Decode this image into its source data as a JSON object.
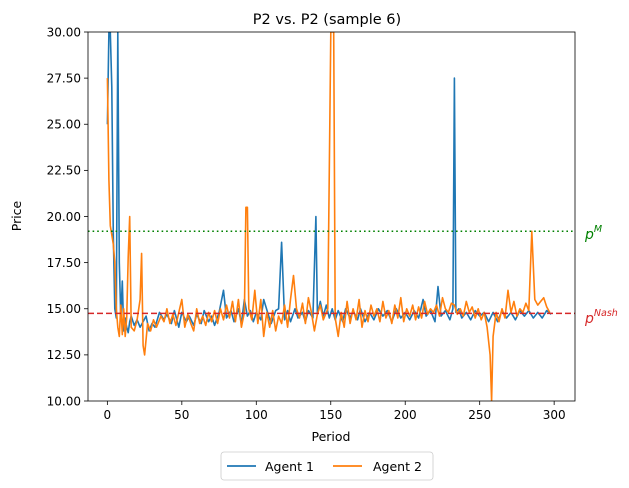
{
  "chart_data": {
    "type": "line",
    "title": "P2 vs. P2 (sample 6)",
    "xlabel": "Period",
    "ylabel": "Price",
    "xlim": [
      -13,
      314
    ],
    "ylim": [
      10.0,
      30.0
    ],
    "xticks": [
      0,
      50,
      100,
      150,
      200,
      250,
      300
    ],
    "yticks": [
      10.0,
      12.5,
      15.0,
      17.5,
      20.0,
      22.5,
      25.0,
      27.5,
      30.0
    ],
    "ytick_labels": [
      "10.00",
      "12.50",
      "15.00",
      "17.50",
      "20.00",
      "22.50",
      "25.00",
      "27.50",
      "30.00"
    ],
    "grid": false,
    "legend_position": "below-center",
    "reference_lines": [
      {
        "name": "p^M",
        "label_main": "p",
        "label_sup": "M",
        "value": 19.2,
        "style": "dotted",
        "color": "#008000"
      },
      {
        "name": "p^Nash",
        "label_main": "p",
        "label_sup": "Nash",
        "value": 14.75,
        "style": "dashed",
        "color": "#d62728"
      }
    ],
    "series": [
      {
        "name": "Agent 1",
        "color": "#1f77b4",
        "points": [
          [
            0,
            25.0
          ],
          [
            1,
            30.0
          ],
          [
            2,
            30.0
          ],
          [
            3,
            27.0
          ],
          [
            4,
            19.0
          ],
          [
            5,
            15.0
          ],
          [
            6,
            14.5
          ],
          [
            7,
            30.0
          ],
          [
            8,
            17.5
          ],
          [
            9,
            14.5
          ],
          [
            10,
            16.5
          ],
          [
            11,
            13.8
          ],
          [
            12,
            14.5
          ],
          [
            13,
            14.0
          ],
          [
            14,
            13.7
          ],
          [
            15,
            14.3
          ],
          [
            16,
            14.6
          ],
          [
            18,
            14.1
          ],
          [
            20,
            14.4
          ],
          [
            22,
            14.0
          ],
          [
            24,
            14.3
          ],
          [
            26,
            14.6
          ],
          [
            28,
            13.8
          ],
          [
            30,
            14.2
          ],
          [
            32,
            14.0
          ],
          [
            35,
            14.8
          ],
          [
            38,
            14.4
          ],
          [
            40,
            14.7
          ],
          [
            43,
            14.2
          ],
          [
            45,
            14.9
          ],
          [
            48,
            14.0
          ],
          [
            50,
            14.8
          ],
          [
            53,
            14.3
          ],
          [
            55,
            14.6
          ],
          [
            58,
            14.1
          ],
          [
            60,
            14.7
          ],
          [
            63,
            14.2
          ],
          [
            65,
            14.9
          ],
          [
            68,
            14.3
          ],
          [
            70,
            14.6
          ],
          [
            72,
            14.1
          ],
          [
            75,
            14.8
          ],
          [
            78,
            16.0
          ],
          [
            80,
            14.5
          ],
          [
            83,
            14.9
          ],
          [
            85,
            14.3
          ],
          [
            88,
            15.0
          ],
          [
            90,
            14.2
          ],
          [
            92,
            15.5
          ],
          [
            94,
            14.6
          ],
          [
            96,
            14.9
          ],
          [
            98,
            14.3
          ],
          [
            100,
            14.8
          ],
          [
            103,
            14.4
          ],
          [
            105,
            15.5
          ],
          [
            108,
            14.7
          ],
          [
            110,
            14.2
          ],
          [
            113,
            14.9
          ],
          [
            115,
            15.0
          ],
          [
            117,
            18.6
          ],
          [
            119,
            14.4
          ],
          [
            121,
            14.9
          ],
          [
            123,
            14.3
          ],
          [
            126,
            15.0
          ],
          [
            128,
            14.5
          ],
          [
            131,
            14.8
          ],
          [
            133,
            14.3
          ],
          [
            135,
            14.9
          ],
          [
            138,
            14.5
          ],
          [
            140,
            20.0
          ],
          [
            141,
            14.7
          ],
          [
            143,
            15.4
          ],
          [
            145,
            14.6
          ],
          [
            147,
            15.2
          ],
          [
            149,
            14.5
          ],
          [
            151,
            15.0
          ],
          [
            153,
            14.4
          ],
          [
            155,
            14.9
          ],
          [
            158,
            14.3
          ],
          [
            160,
            15.0
          ],
          [
            163,
            14.5
          ],
          [
            165,
            14.9
          ],
          [
            168,
            14.4
          ],
          [
            170,
            15.0
          ],
          [
            173,
            14.3
          ],
          [
            176,
            14.8
          ],
          [
            179,
            14.4
          ],
          [
            182,
            15.0
          ],
          [
            185,
            14.6
          ],
          [
            188,
            14.9
          ],
          [
            191,
            14.3
          ],
          [
            194,
            15.0
          ],
          [
            197,
            14.5
          ],
          [
            200,
            14.8
          ],
          [
            203,
            14.4
          ],
          [
            206,
            14.9
          ],
          [
            209,
            14.5
          ],
          [
            212,
            15.5
          ],
          [
            214,
            14.6
          ],
          [
            217,
            14.9
          ],
          [
            220,
            14.3
          ],
          [
            222,
            16.2
          ],
          [
            224,
            14.6
          ],
          [
            227,
            14.9
          ],
          [
            230,
            14.4
          ],
          [
            232,
            15.0
          ],
          [
            233,
            27.5
          ],
          [
            234,
            14.8
          ],
          [
            236,
            15.0
          ],
          [
            238,
            14.5
          ],
          [
            241,
            14.8
          ],
          [
            244,
            14.4
          ],
          [
            247,
            14.9
          ],
          [
            250,
            14.6
          ],
          [
            253,
            14.8
          ],
          [
            256,
            14.3
          ],
          [
            259,
            14.8
          ],
          [
            262,
            14.3
          ],
          [
            265,
            14.9
          ],
          [
            268,
            14.5
          ],
          [
            271,
            14.8
          ],
          [
            274,
            14.4
          ],
          [
            277,
            14.9
          ],
          [
            280,
            14.6
          ],
          [
            283,
            14.9
          ],
          [
            286,
            14.5
          ],
          [
            289,
            14.8
          ],
          [
            292,
            14.5
          ],
          [
            295,
            14.9
          ],
          [
            298,
            14.7
          ]
        ]
      },
      {
        "name": "Agent 2",
        "color": "#ff7f0e",
        "points": [
          [
            0,
            27.5
          ],
          [
            1,
            22.0
          ],
          [
            2,
            19.5
          ],
          [
            3,
            19.0
          ],
          [
            4,
            18.5
          ],
          [
            5,
            17.5
          ],
          [
            6,
            15.0
          ],
          [
            7,
            14.0
          ],
          [
            8,
            13.5
          ],
          [
            9,
            15.2
          ],
          [
            10,
            13.6
          ],
          [
            11,
            15.0
          ],
          [
            12,
            13.5
          ],
          [
            13,
            14.5
          ],
          [
            14,
            17.8
          ],
          [
            15,
            20.0
          ],
          [
            16,
            14.0
          ],
          [
            18,
            13.8
          ],
          [
            20,
            14.4
          ],
          [
            22,
            15.5
          ],
          [
            23,
            18.0
          ],
          [
            24,
            13.0
          ],
          [
            25,
            12.5
          ],
          [
            27,
            14.2
          ],
          [
            29,
            13.8
          ],
          [
            31,
            14.4
          ],
          [
            33,
            14.0
          ],
          [
            36,
            14.6
          ],
          [
            38,
            14.3
          ],
          [
            40,
            15.0
          ],
          [
            42,
            14.2
          ],
          [
            44,
            14.7
          ],
          [
            46,
            14.1
          ],
          [
            48,
            14.8
          ],
          [
            50,
            15.5
          ],
          [
            52,
            14.0
          ],
          [
            54,
            14.7
          ],
          [
            56,
            14.2
          ],
          [
            58,
            13.8
          ],
          [
            60,
            15.0
          ],
          [
            62,
            14.2
          ],
          [
            64,
            14.6
          ],
          [
            66,
            14.1
          ],
          [
            68,
            14.8
          ],
          [
            70,
            14.3
          ],
          [
            72,
            14.9
          ],
          [
            74,
            14.2
          ],
          [
            76,
            15.0
          ],
          [
            78,
            14.4
          ],
          [
            80,
            15.2
          ],
          [
            82,
            14.5
          ],
          [
            84,
            15.4
          ],
          [
            86,
            14.3
          ],
          [
            88,
            15.5
          ],
          [
            90,
            14.0
          ],
          [
            92,
            14.8
          ],
          [
            93,
            20.5
          ],
          [
            94,
            20.5
          ],
          [
            95,
            15.0
          ],
          [
            97,
            14.4
          ],
          [
            99,
            16.0
          ],
          [
            101,
            14.2
          ],
          [
            103,
            15.5
          ],
          [
            105,
            13.5
          ],
          [
            107,
            14.8
          ],
          [
            109,
            14.0
          ],
          [
            111,
            14.9
          ],
          [
            113,
            13.8
          ],
          [
            115,
            14.6
          ],
          [
            117,
            14.2
          ],
          [
            119,
            15.2
          ],
          [
            121,
            14.0
          ],
          [
            123,
            15.5
          ],
          [
            125,
            16.8
          ],
          [
            127,
            15.0
          ],
          [
            129,
            14.5
          ],
          [
            131,
            15.3
          ],
          [
            133,
            14.2
          ],
          [
            135,
            15.6
          ],
          [
            137,
            14.8
          ],
          [
            139,
            13.8
          ],
          [
            141,
            14.7
          ],
          [
            143,
            15.2
          ],
          [
            145,
            14.4
          ],
          [
            148,
            15.0
          ],
          [
            150,
            30.0
          ],
          [
            152,
            30.0
          ],
          [
            153,
            14.5
          ],
          [
            155,
            13.5
          ],
          [
            157,
            14.8
          ],
          [
            159,
            14.0
          ],
          [
            161,
            15.4
          ],
          [
            163,
            14.2
          ],
          [
            165,
            15.0
          ],
          [
            167,
            14.4
          ],
          [
            169,
            15.5
          ],
          [
            171,
            14.0
          ],
          [
            173,
            14.9
          ],
          [
            175,
            14.3
          ],
          [
            177,
            15.2
          ],
          [
            179,
            14.6
          ],
          [
            181,
            15.0
          ],
          [
            183,
            14.3
          ],
          [
            185,
            15.4
          ],
          [
            187,
            14.5
          ],
          [
            189,
            14.9
          ],
          [
            191,
            14.2
          ],
          [
            193,
            15.2
          ],
          [
            195,
            14.5
          ],
          [
            197,
            15.6
          ],
          [
            199,
            14.3
          ],
          [
            201,
            15.0
          ],
          [
            203,
            14.6
          ],
          [
            205,
            15.2
          ],
          [
            207,
            14.4
          ],
          [
            209,
            15.1
          ],
          [
            211,
            14.5
          ],
          [
            213,
            15.4
          ],
          [
            215,
            14.7
          ],
          [
            217,
            15.0
          ],
          [
            219,
            14.8
          ],
          [
            221,
            15.2
          ],
          [
            223,
            14.6
          ],
          [
            225,
            15.6
          ],
          [
            227,
            15.0
          ],
          [
            229,
            14.8
          ],
          [
            231,
            15.3
          ],
          [
            233,
            15.2
          ],
          [
            235,
            14.7
          ],
          [
            237,
            15.0
          ],
          [
            239,
            14.6
          ],
          [
            241,
            15.4
          ],
          [
            243,
            14.8
          ],
          [
            245,
            15.1
          ],
          [
            247,
            14.5
          ],
          [
            249,
            15.0
          ],
          [
            251,
            14.4
          ],
          [
            253,
            14.8
          ],
          [
            255,
            14.0
          ],
          [
            257,
            12.5
          ],
          [
            258,
            10.0
          ],
          [
            259,
            13.5
          ],
          [
            261,
            14.8
          ],
          [
            263,
            14.3
          ],
          [
            265,
            15.0
          ],
          [
            267,
            14.5
          ],
          [
            269,
            16.0
          ],
          [
            271,
            14.8
          ],
          [
            273,
            15.4
          ],
          [
            275,
            14.6
          ],
          [
            277,
            15.0
          ],
          [
            279,
            14.8
          ],
          [
            281,
            15.3
          ],
          [
            283,
            14.9
          ],
          [
            285,
            19.2
          ],
          [
            287,
            15.5
          ],
          [
            289,
            15.2
          ],
          [
            291,
            15.4
          ],
          [
            293,
            15.6
          ],
          [
            295,
            15.1
          ],
          [
            297,
            14.8
          ]
        ]
      }
    ]
  }
}
